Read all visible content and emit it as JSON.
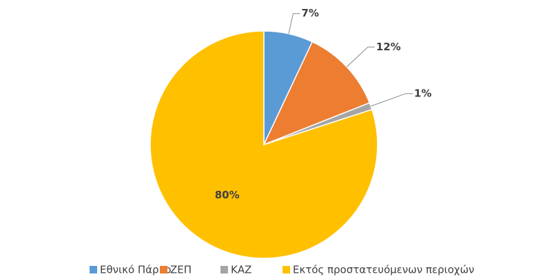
{
  "chart_data": {
    "type": "pie",
    "categories": [
      "Εθνικό Πάρκο",
      "ΖΕΠ",
      "ΚΑΖ",
      "Εκτός προστατευόμενων περιοχών"
    ],
    "values": [
      7,
      12,
      1,
      80
    ],
    "value_labels": [
      "7%",
      "12%",
      "1%",
      "80%"
    ],
    "colors": [
      "#5b9bd5",
      "#ed7d31",
      "#a5a5a5",
      "#ffc000"
    ],
    "legend": "bottom"
  }
}
